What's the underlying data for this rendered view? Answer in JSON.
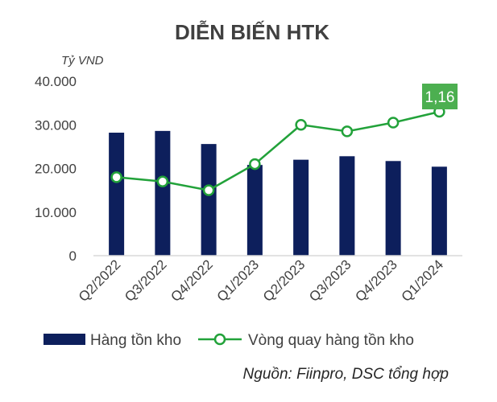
{
  "chart_data": {
    "type": "bar",
    "title": "DIỄN BIẾN HTK",
    "unit_label": "Tỷ VND",
    "categories": [
      "Q2/2022",
      "Q3/2022",
      "Q4/2022",
      "Q1/2023",
      "Q2/2023",
      "Q3/2023",
      "Q4/2023",
      "Q1/2024"
    ],
    "y_ticks": [
      "40.000",
      "30.000",
      "20.000",
      "10.000",
      "0"
    ],
    "ylim": [
      0,
      40000
    ],
    "grid": false,
    "legend_position": "bottom",
    "series": [
      {
        "name": "Hàng tồn kho",
        "type": "bar",
        "color": "#0d1f5c",
        "values": [
          28200,
          28600,
          25600,
          20800,
          22000,
          22800,
          21700,
          20400
        ]
      },
      {
        "name": "Vòng quay hàng tồn kho",
        "type": "line",
        "color": "#22a23a",
        "marker": "circle-open",
        "values": [
          0.86,
          0.84,
          0.8,
          0.92,
          1.1,
          1.07,
          1.11,
          1.16
        ]
      }
    ],
    "annotation": {
      "text": "1,16",
      "color": "#4caf50"
    },
    "source": "Nguồn: Fiinpro, DSC tổng hợp"
  }
}
